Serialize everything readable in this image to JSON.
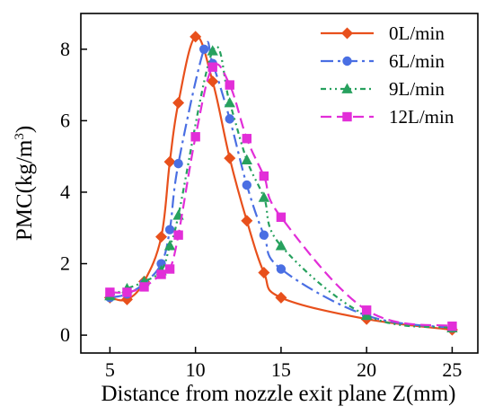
{
  "chart_data": {
    "type": "line",
    "xlabel": "Distance from nozzle exit plane Z(mm)",
    "ylabel_main": "PMC(kg/m",
    "ylabel_sup": "3",
    "ylabel_close": ")",
    "xlim": [
      3.3,
      26.5
    ],
    "ylim": [
      -0.5,
      9.0
    ],
    "xticks": [
      5,
      10,
      15,
      20,
      25
    ],
    "yticks": [
      0,
      2,
      4,
      6,
      8
    ],
    "xtick_labels": [
      "5",
      "10",
      "15",
      "20",
      "25"
    ],
    "ytick_labels": [
      "0",
      "2",
      "4",
      "6",
      "8"
    ],
    "grid": false,
    "legend_position": "top-right",
    "series": [
      {
        "name": "0L/min",
        "color": "#e8501c",
        "marker": "diamond",
        "dash": "solid",
        "points": [
          [
            5,
            1.05
          ],
          [
            6,
            1.0
          ],
          [
            7,
            1.5
          ],
          [
            8,
            2.75
          ],
          [
            8.5,
            4.85
          ],
          [
            9,
            6.5
          ],
          [
            10,
            8.35
          ],
          [
            11,
            7.1
          ],
          [
            12,
            4.95
          ],
          [
            13,
            3.2
          ],
          [
            14,
            1.75
          ],
          [
            15,
            1.05
          ],
          [
            20,
            0.45
          ],
          [
            25,
            0.15
          ]
        ]
      },
      {
        "name": "6L/min",
        "color": "#4a6fe3",
        "marker": "circle",
        "dash": "14 5 3 5",
        "points": [
          [
            5,
            1.05
          ],
          [
            6,
            1.15
          ],
          [
            7,
            1.45
          ],
          [
            8,
            2.0
          ],
          [
            8.5,
            2.95
          ],
          [
            9,
            4.8
          ],
          [
            10.5,
            8.0
          ],
          [
            11,
            7.6
          ],
          [
            12,
            6.05
          ],
          [
            13,
            4.2
          ],
          [
            14,
            2.8
          ],
          [
            15,
            1.85
          ],
          [
            20,
            0.55
          ],
          [
            25,
            0.2
          ]
        ]
      },
      {
        "name": "9L/min",
        "color": "#27a15e",
        "marker": "triangle",
        "dash": "6 4 2 4 2 4",
        "points": [
          [
            5,
            1.1
          ],
          [
            6,
            1.3
          ],
          [
            7,
            1.5
          ],
          [
            8,
            1.8
          ],
          [
            8.5,
            2.5
          ],
          [
            9,
            3.35
          ],
          [
            11,
            7.95
          ],
          [
            12,
            6.5
          ],
          [
            13,
            4.9
          ],
          [
            14,
            3.85
          ],
          [
            15,
            2.5
          ],
          [
            20,
            0.55
          ],
          [
            25,
            0.2
          ]
        ]
      },
      {
        "name": "12L/min",
        "color": "#e22ed8",
        "marker": "square",
        "dash": "12 6",
        "points": [
          [
            5,
            1.2
          ],
          [
            6,
            1.2
          ],
          [
            7,
            1.35
          ],
          [
            8,
            1.7
          ],
          [
            8.5,
            1.85
          ],
          [
            9,
            2.8
          ],
          [
            10,
            5.55
          ],
          [
            11,
            7.5
          ],
          [
            12,
            7.0
          ],
          [
            13,
            5.5
          ],
          [
            14,
            4.45
          ],
          [
            15,
            3.3
          ],
          [
            20,
            0.7
          ],
          [
            25,
            0.25
          ]
        ]
      }
    ]
  }
}
